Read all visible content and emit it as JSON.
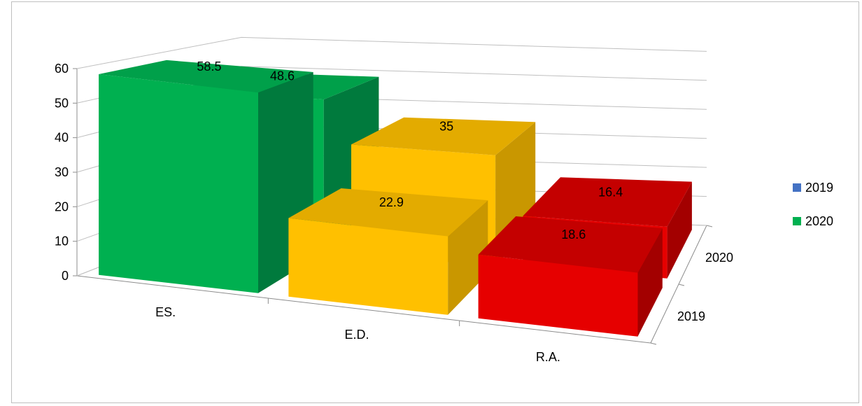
{
  "chart_data": {
    "type": "bar",
    "categories": [
      "ES.",
      "E.D.",
      "R.A."
    ],
    "depth_categories": [
      "2019",
      "2020"
    ],
    "series": [
      {
        "name": "2019",
        "values": [
          58.5,
          22.9,
          18.6
        ]
      },
      {
        "name": "2020",
        "values": [
          48.6,
          35,
          16.4
        ]
      }
    ],
    "ylim": [
      0,
      60
    ],
    "yticks": [
      "0",
      "10",
      "20",
      "30",
      "40",
      "50",
      "60"
    ],
    "grid": true,
    "legend_position": "right",
    "legend": [
      {
        "label": "2019",
        "color": "#4472c4"
      },
      {
        "label": "2020",
        "color": "#00b050"
      }
    ],
    "category_colors": {
      "ES.": {
        "front": "#00b050",
        "side": "#007a3d",
        "top": "#00a04a"
      },
      "E.D.": {
        "front": "#ffc000",
        "side": "#c99700",
        "top": "#e3ab00"
      },
      "R.A.": {
        "front": "#e60000",
        "side": "#a30000",
        "top": "#c40000"
      }
    }
  }
}
